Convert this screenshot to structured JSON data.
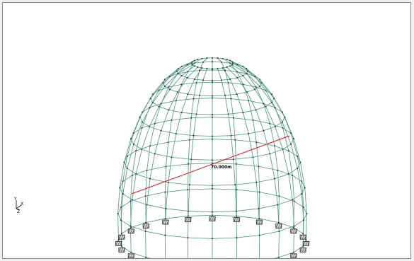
{
  "viewport": {
    "dimension_label": "70.000m",
    "axis_labels": {
      "y": "Y",
      "x": "X",
      "z": "Z"
    }
  },
  "colors": {
    "member": "#5f9f8c",
    "node": "#2f4f48",
    "dimension": "#e01010",
    "support_fill": "#cfcfcf",
    "support_stroke": "#222222"
  },
  "structure": {
    "type": "geodesic dome",
    "meridians": 24,
    "rings": 10,
    "supports": 20
  }
}
